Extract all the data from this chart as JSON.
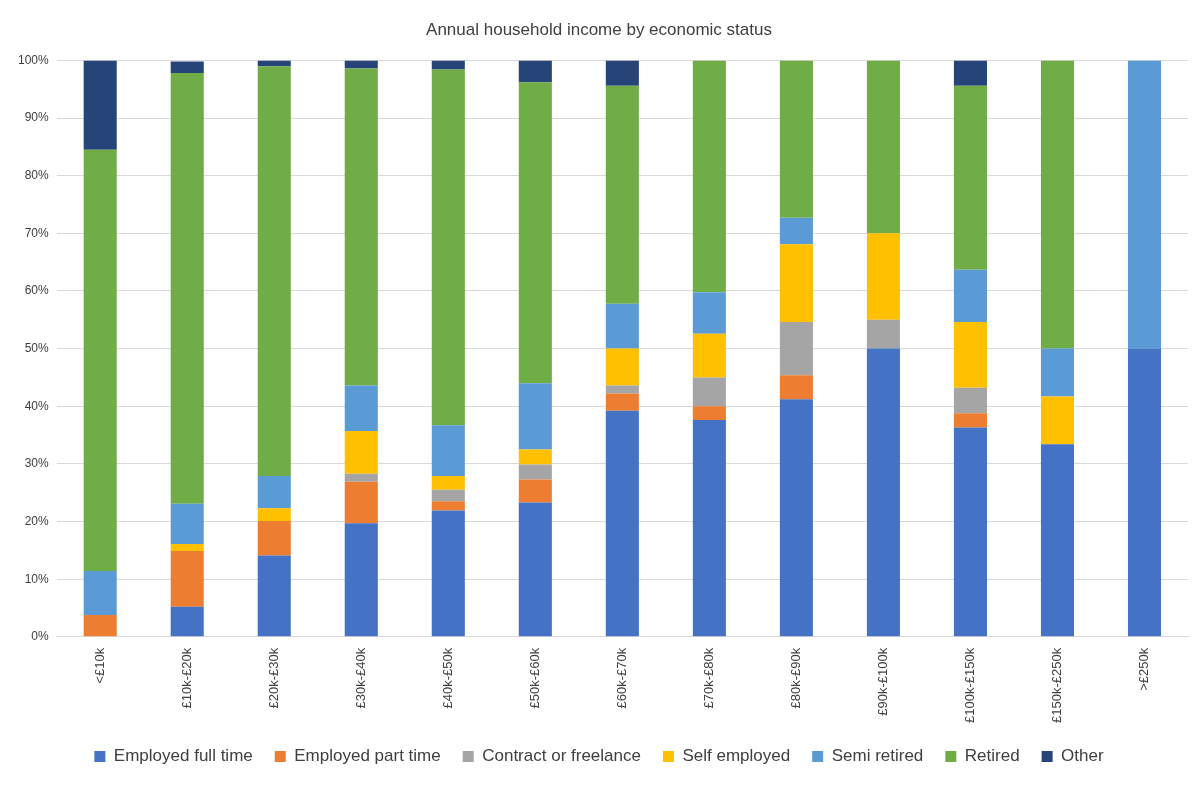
{
  "chart_data": {
    "type": "bar",
    "title": "Annual household income by economic status",
    "categories": [
      "<£10k",
      "£10k-£20k",
      "£20k-£30k",
      "£30k-£40k",
      "£40k-£50k",
      "£50k-£60k",
      "£60k-£70k",
      "£70k-£80k",
      "£80k-£90k",
      "£90k-£100k",
      "£100k-£150k",
      "£150k-£250k",
      ">£250k"
    ],
    "series": [
      {
        "name": "Employed full time",
        "color": "#4472c4",
        "values": [
          0,
          5.2,
          14.1,
          19.7,
          21.9,
          23.3,
          39.2,
          37.6,
          41.2,
          50,
          36.3,
          33.4,
          50
        ]
      },
      {
        "name": "Employed part time",
        "color": "#ed7d31",
        "values": [
          3.8,
          9.7,
          6.0,
          7.2,
          1.6,
          4.0,
          3.0,
          2.4,
          4.2,
          0,
          2.5,
          0,
          0
        ]
      },
      {
        "name": "Contract or freelance",
        "color": "#a5a5a5",
        "values": [
          0,
          null,
          0,
          1.4,
          2.0,
          2.6,
          1.4,
          5.0,
          9.2,
          5,
          4.4,
          0,
          0
        ]
      },
      {
        "name": "Self employed",
        "color": "#ffc000",
        "values": [
          0,
          1.2,
          2.2,
          7.4,
          2.4,
          2.6,
          6.4,
          7.6,
          13.5,
          15,
          11.4,
          8.3,
          0
        ]
      },
      {
        "name": "Semi retired",
        "color": "#5b9bd5",
        "values": [
          7.6,
          7.0,
          5.6,
          7.9,
          8.8,
          11.5,
          7.8,
          7.2,
          4.6,
          0,
          9.1,
          8.3,
          50
        ]
      },
      {
        "name": "Retired",
        "color": "#70ad47",
        "values": [
          73.1,
          74.7,
          71.1,
          55.0,
          61.7,
          52.2,
          37.8,
          40.2,
          27.3,
          30,
          31.9,
          50,
          0
        ]
      },
      {
        "name": "Other",
        "color": "#264478",
        "values": [
          15.5,
          2.0,
          1.0,
          1.4,
          1.6,
          3.8,
          4.4,
          0,
          0,
          0,
          4.4,
          0,
          0
        ]
      }
    ],
    "stacked": true,
    "ylim": [
      0,
      100
    ],
    "yticks": [
      {
        "value": 0,
        "label": "0%"
      },
      {
        "value": 10,
        "label": "10%"
      },
      {
        "value": 20,
        "label": "20%"
      },
      {
        "value": 30,
        "label": "30%"
      },
      {
        "value": 40,
        "label": "40%"
      },
      {
        "value": 50,
        "label": "50%"
      },
      {
        "value": 60,
        "label": "60%"
      },
      {
        "value": 70,
        "label": "70%"
      },
      {
        "value": 80,
        "label": "80%"
      },
      {
        "value": 90,
        "label": "90%"
      },
      {
        "value": 100,
        "label": "100%"
      }
    ],
    "grid": "y",
    "legend": "bottom"
  }
}
